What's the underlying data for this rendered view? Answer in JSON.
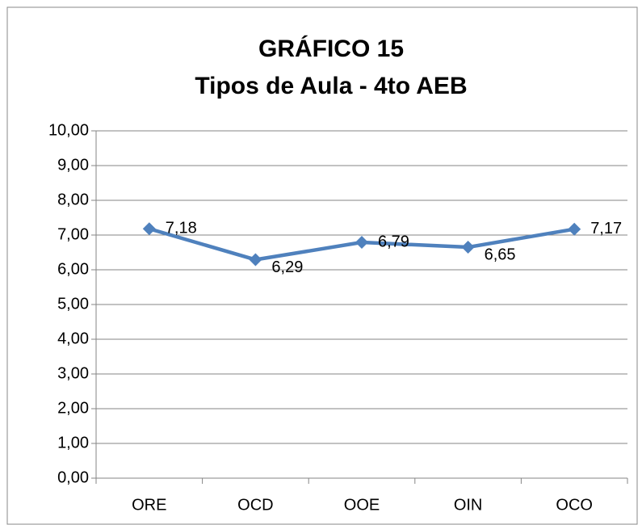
{
  "chart_data": {
    "type": "line",
    "title": "GRÁFICO 15",
    "subtitle": "Tipos de Aula - 4to AEB",
    "categories": [
      "ORE",
      "OCD",
      "OOE",
      "OIN",
      "OCO"
    ],
    "series": [
      {
        "color": "#4f81bd",
        "values": [
          7.18,
          6.29,
          6.79,
          6.65,
          7.17
        ],
        "value_labels": [
          "7,18",
          "6,29",
          "6,79",
          "6,65",
          "7,17"
        ]
      }
    ],
    "ylim": [
      0,
      10
    ],
    "yticks": [
      {
        "value": 0,
        "label": "0,00"
      },
      {
        "value": 1,
        "label": "1,00"
      },
      {
        "value": 2,
        "label": "2,00"
      },
      {
        "value": 3,
        "label": "3,00"
      },
      {
        "value": 4,
        "label": "4,00"
      },
      {
        "value": 5,
        "label": "5,00"
      },
      {
        "value": 6,
        "label": "6,00"
      },
      {
        "value": 7,
        "label": "7,00"
      },
      {
        "value": 8,
        "label": "8,00"
      },
      {
        "value": 9,
        "label": "9,00"
      },
      {
        "value": 10,
        "label": "10,00"
      }
    ],
    "grid": true
  }
}
